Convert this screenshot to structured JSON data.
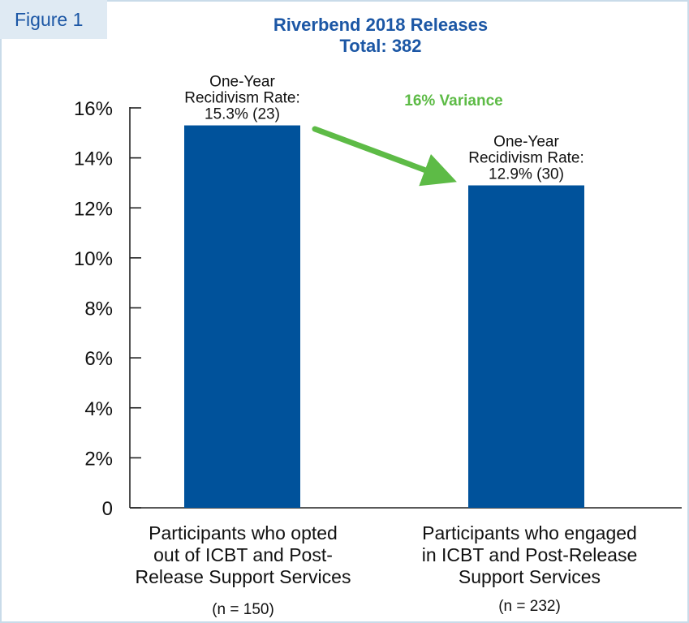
{
  "figure_tag": "Figure 1",
  "title_line1": "Riverbend 2018 Releases",
  "title_line2": "Total: 382",
  "colors": {
    "bar": "#00529b",
    "title": "#1c57a5",
    "arrow": "#5dbb46",
    "tag_bg": "#dfeaf3",
    "frame": "#c9dbe9"
  },
  "chart_data": {
    "type": "bar",
    "title": "Riverbend 2018 Releases",
    "subtitle": "Total: 382",
    "categories": [
      "Participants who opted out of ICBT and Post-Release Support Services",
      "Participants who engaged in ICBT and Post-Release Support Services"
    ],
    "category_lines": [
      [
        "Participants who opted",
        "out of ICBT and Post-",
        "Release Support Services"
      ],
      [
        "Participants who engaged",
        "in ICBT and Post-Release",
        "Support Services"
      ]
    ],
    "n_labels": [
      "(n = 150)",
      "(n = 232)"
    ],
    "values": [
      15.3,
      12.9
    ],
    "data_labels": [
      [
        "One-Year",
        "Recidivism Rate:",
        "15.3% (23)"
      ],
      [
        "One-Year",
        "Recidivism Rate:",
        "12.9% (30)"
      ]
    ],
    "ylim": [
      0,
      16
    ],
    "yticks": [
      0,
      2,
      4,
      6,
      8,
      10,
      12,
      14,
      16
    ],
    "ytick_labels": [
      "0",
      "2%",
      "4%",
      "6%",
      "8%",
      "10%",
      "12%",
      "14%",
      "16%"
    ],
    "annotation": "16% Variance",
    "grid": false
  }
}
